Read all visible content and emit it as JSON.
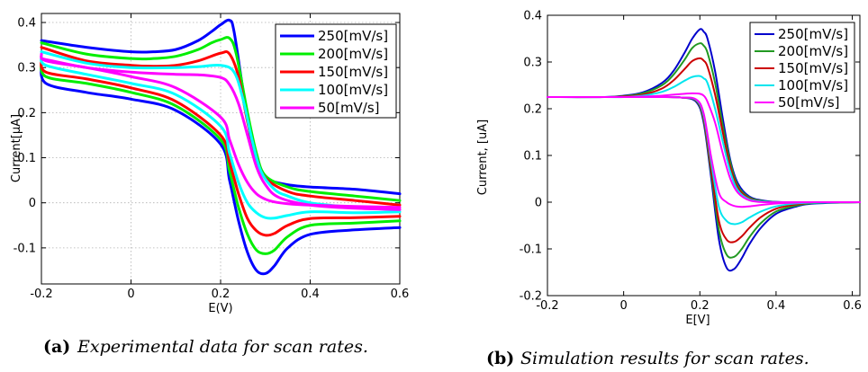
{
  "colors": {
    "s250": "#0000ff",
    "s200": "#00ee00",
    "s150": "#ff0000",
    "s100": "#00ffff",
    "s50": "#ff00ff",
    "sim250": "#0000cc",
    "sim200": "#229922",
    "sim150": "#cc0000",
    "sim100": "#00e5ee",
    "sim50": "#ff00ff"
  },
  "chart_data": [
    {
      "type": "line",
      "caption_label": "(a)",
      "caption_text": "Experimental data for scan rates.",
      "xlabel": "E(V)",
      "ylabel": "Current[μA]",
      "xlim": [
        -0.2,
        0.6
      ],
      "ylim": [
        -0.18,
        0.42
      ],
      "xticks": [
        "-0.2",
        "0",
        "0.2",
        "0.4",
        "0.6"
      ],
      "yticks": [
        "-0.1",
        "0",
        "0.1",
        "0.2",
        "0.3",
        "0.4"
      ],
      "grid": true,
      "legend_position": "top-right",
      "series": [
        {
          "name": "250[mV/s]",
          "color_key": "s250",
          "forward": {
            "x": [
              -0.2,
              -0.1,
              0.0,
              0.05,
              0.1,
              0.15,
              0.18,
              0.2,
              0.22,
              0.23,
              0.25,
              0.27,
              0.29,
              0.31,
              0.35,
              0.4,
              0.5,
              0.6
            ],
            "y": [
              0.36,
              0.345,
              0.335,
              0.335,
              0.34,
              0.36,
              0.38,
              0.395,
              0.405,
              0.38,
              0.25,
              0.13,
              0.07,
              0.05,
              0.04,
              0.035,
              0.03,
              0.02
            ]
          },
          "backward": {
            "x": [
              0.6,
              0.5,
              0.4,
              0.35,
              0.32,
              0.3,
              0.28,
              0.26,
              0.24,
              0.22,
              0.2,
              0.1,
              0.0,
              -0.1,
              -0.19,
              -0.2
            ],
            "y": [
              -0.055,
              -0.06,
              -0.07,
              -0.1,
              -0.14,
              -0.157,
              -0.15,
              -0.11,
              -0.04,
              0.05,
              0.13,
              0.205,
              0.23,
              0.245,
              0.265,
              0.31
            ]
          }
        },
        {
          "name": "200[mV/s]",
          "color_key": "s200",
          "forward": {
            "x": [
              -0.2,
              -0.1,
              0.0,
              0.05,
              0.1,
              0.15,
              0.18,
              0.2,
              0.22,
              0.235,
              0.26,
              0.28,
              0.3,
              0.35,
              0.4,
              0.5,
              0.6
            ],
            "y": [
              0.355,
              0.33,
              0.32,
              0.32,
              0.325,
              0.34,
              0.355,
              0.362,
              0.365,
              0.33,
              0.2,
              0.11,
              0.06,
              0.035,
              0.025,
              0.015,
              0.005
            ]
          },
          "backward": {
            "x": [
              0.6,
              0.5,
              0.4,
              0.35,
              0.32,
              0.3,
              0.28,
              0.26,
              0.24,
              0.22,
              0.2,
              0.1,
              0.0,
              -0.1,
              -0.19,
              -0.2
            ],
            "y": [
              -0.04,
              -0.045,
              -0.05,
              -0.075,
              -0.105,
              -0.113,
              -0.105,
              -0.07,
              -0.01,
              0.07,
              0.14,
              0.215,
              0.245,
              0.265,
              0.28,
              0.315
            ]
          }
        },
        {
          "name": "150[mV/s]",
          "color_key": "s150",
          "forward": {
            "x": [
              -0.2,
              -0.1,
              0.0,
              0.05,
              0.1,
              0.15,
              0.2,
              0.22,
              0.24,
              0.26,
              0.28,
              0.3,
              0.35,
              0.4,
              0.5,
              0.6
            ],
            "y": [
              0.345,
              0.315,
              0.305,
              0.303,
              0.305,
              0.315,
              0.332,
              0.33,
              0.28,
              0.18,
              0.1,
              0.055,
              0.025,
              0.015,
              0.005,
              -0.005
            ]
          },
          "backward": {
            "x": [
              0.6,
              0.5,
              0.4,
              0.35,
              0.32,
              0.3,
              0.28,
              0.26,
              0.24,
              0.22,
              0.2,
              0.1,
              0.0,
              -0.1,
              -0.19,
              -0.2
            ],
            "y": [
              -0.03,
              -0.033,
              -0.035,
              -0.05,
              -0.068,
              -0.072,
              -0.062,
              -0.035,
              0.02,
              0.09,
              0.15,
              0.225,
              0.255,
              0.275,
              0.29,
              0.32
            ]
          }
        },
        {
          "name": "100[mV/s]",
          "color_key": "s100",
          "forward": {
            "x": [
              -0.2,
              -0.1,
              0.0,
              0.1,
              0.15,
              0.2,
              0.23,
              0.25,
              0.27,
              0.29,
              0.32,
              0.35,
              0.4,
              0.5,
              0.6
            ],
            "y": [
              0.335,
              0.31,
              0.3,
              0.3,
              0.302,
              0.305,
              0.29,
              0.23,
              0.14,
              0.07,
              0.03,
              0.015,
              0.0,
              -0.01,
              -0.015
            ]
          },
          "backward": {
            "x": [
              0.6,
              0.5,
              0.4,
              0.35,
              0.32,
              0.3,
              0.28,
              0.26,
              0.24,
              0.22,
              0.2,
              0.1,
              0.0,
              -0.1,
              -0.19,
              -0.2
            ],
            "y": [
              -0.02,
              -0.022,
              -0.02,
              -0.028,
              -0.034,
              -0.033,
              -0.022,
              0.0,
              0.045,
              0.11,
              0.17,
              0.24,
              0.265,
              0.285,
              0.305,
              0.325
            ]
          }
        },
        {
          "name": "50[mV/s]",
          "color_key": "s50",
          "forward": {
            "x": [
              -0.2,
              -0.1,
              0.0,
              0.1,
              0.15,
              0.2,
              0.22,
              0.24,
              0.26,
              0.28,
              0.3,
              0.33,
              0.4,
              0.5,
              0.6
            ],
            "y": [
              0.32,
              0.3,
              0.29,
              0.285,
              0.284,
              0.278,
              0.262,
              0.22,
              0.15,
              0.08,
              0.04,
              0.012,
              -0.005,
              -0.012,
              -0.015
            ]
          },
          "backward": {
            "x": [
              0.6,
              0.5,
              0.4,
              0.35,
              0.32,
              0.3,
              0.28,
              0.26,
              0.24,
              0.22,
              0.2,
              0.1,
              0.0,
              -0.1,
              -0.19,
              -0.2
            ],
            "y": [
              -0.01,
              -0.008,
              -0.005,
              -0.002,
              0.002,
              0.008,
              0.02,
              0.045,
              0.085,
              0.14,
              0.19,
              0.255,
              0.28,
              0.3,
              0.315,
              0.33
            ]
          }
        }
      ]
    },
    {
      "type": "line",
      "caption_label": "(b)",
      "caption_text": "Simulation results for scan rates.",
      "xlabel": "E[V]",
      "ylabel": "Current, [uA]",
      "xlim": [
        -0.2,
        0.62
      ],
      "ylim": [
        -0.2,
        0.4
      ],
      "xticks": [
        "-0.2",
        "0",
        "0.2",
        "0.4",
        "0.6"
      ],
      "yticks": [
        "-0.2",
        "-0.1",
        "0",
        "0.1",
        "0.2",
        "0.3",
        "0.4"
      ],
      "grid": false,
      "legend_position": "top-right",
      "series": [
        {
          "name": "250[mV/s]",
          "color_key": "sim250",
          "forward": {
            "x": [
              -0.2,
              -0.05,
              0.0,
              0.05,
              0.1,
              0.13,
              0.16,
              0.18,
              0.2,
              0.21,
              0.22,
              0.24,
              0.26,
              0.28,
              0.3,
              0.33,
              0.37,
              0.42,
              0.5,
              0.62
            ],
            "y": [
              0.225,
              0.225,
              0.228,
              0.235,
              0.255,
              0.28,
              0.32,
              0.35,
              0.37,
              0.365,
              0.35,
              0.28,
              0.18,
              0.09,
              0.04,
              0.012,
              0.003,
              0.0,
              0.0,
              0.0
            ]
          },
          "backward": {
            "x": [
              0.62,
              0.5,
              0.45,
              0.4,
              0.36,
              0.33,
              0.31,
              0.29,
              0.27,
              0.25,
              0.23,
              0.21,
              0.19,
              0.15,
              0.1,
              0.0,
              -0.2
            ],
            "y": [
              0.0,
              -0.003,
              -0.01,
              -0.025,
              -0.055,
              -0.09,
              -0.12,
              -0.143,
              -0.14,
              -0.08,
              0.05,
              0.17,
              0.215,
              0.224,
              0.225,
              0.225,
              0.225
            ]
          }
        },
        {
          "name": "200[mV/s]",
          "color_key": "sim200",
          "forward": {
            "x": [
              -0.2,
              -0.05,
              0.0,
              0.05,
              0.1,
              0.13,
              0.16,
              0.18,
              0.2,
              0.21,
              0.22,
              0.24,
              0.26,
              0.28,
              0.3,
              0.33,
              0.37,
              0.42,
              0.5,
              0.62
            ],
            "y": [
              0.225,
              0.225,
              0.227,
              0.233,
              0.25,
              0.272,
              0.305,
              0.33,
              0.34,
              0.335,
              0.32,
              0.255,
              0.165,
              0.085,
              0.035,
              0.01,
              0.002,
              0.0,
              0.0,
              0.0
            ]
          },
          "backward": {
            "x": [
              0.62,
              0.5,
              0.45,
              0.4,
              0.36,
              0.33,
              0.31,
              0.29,
              0.27,
              0.25,
              0.23,
              0.21,
              0.19,
              0.15,
              0.1,
              0.0,
              -0.2
            ],
            "y": [
              0.0,
              -0.002,
              -0.008,
              -0.02,
              -0.045,
              -0.075,
              -0.1,
              -0.117,
              -0.112,
              -0.06,
              0.06,
              0.175,
              0.217,
              0.224,
              0.225,
              0.225,
              0.225
            ]
          }
        },
        {
          "name": "150[mV/s]",
          "color_key": "sim150",
          "forward": {
            "x": [
              -0.2,
              -0.05,
              0.0,
              0.05,
              0.1,
              0.13,
              0.16,
              0.18,
              0.2,
              0.21,
              0.22,
              0.24,
              0.26,
              0.28,
              0.3,
              0.33,
              0.37,
              0.42,
              0.5,
              0.62
            ],
            "y": [
              0.225,
              0.225,
              0.226,
              0.23,
              0.243,
              0.26,
              0.285,
              0.302,
              0.308,
              0.303,
              0.29,
              0.23,
              0.15,
              0.075,
              0.03,
              0.008,
              0.001,
              0.0,
              0.0,
              0.0
            ]
          },
          "backward": {
            "x": [
              0.62,
              0.5,
              0.45,
              0.4,
              0.36,
              0.33,
              0.31,
              0.29,
              0.27,
              0.25,
              0.23,
              0.21,
              0.19,
              0.15,
              0.1,
              0.0,
              -0.2
            ],
            "y": [
              0.0,
              -0.001,
              -0.005,
              -0.014,
              -0.032,
              -0.055,
              -0.073,
              -0.085,
              -0.08,
              -0.04,
              0.07,
              0.18,
              0.218,
              0.224,
              0.225,
              0.225,
              0.225
            ]
          }
        },
        {
          "name": "100[mV/s]",
          "color_key": "sim100",
          "forward": {
            "x": [
              -0.2,
              -0.05,
              0.0,
              0.05,
              0.1,
              0.13,
              0.16,
              0.18,
              0.2,
              0.21,
              0.22,
              0.24,
              0.26,
              0.28,
              0.3,
              0.33,
              0.37,
              0.42,
              0.5,
              0.62
            ],
            "y": [
              0.225,
              0.225,
              0.225,
              0.228,
              0.236,
              0.246,
              0.26,
              0.268,
              0.27,
              0.265,
              0.255,
              0.2,
              0.13,
              0.065,
              0.025,
              0.006,
              0.001,
              0.0,
              0.0,
              0.0
            ]
          },
          "backward": {
            "x": [
              0.62,
              0.5,
              0.45,
              0.4,
              0.36,
              0.33,
              0.31,
              0.29,
              0.27,
              0.25,
              0.23,
              0.21,
              0.19,
              0.15,
              0.1,
              0.0,
              -0.2
            ],
            "y": [
              0.0,
              -0.001,
              -0.003,
              -0.009,
              -0.02,
              -0.033,
              -0.043,
              -0.047,
              -0.04,
              -0.01,
              0.085,
              0.185,
              0.219,
              0.224,
              0.225,
              0.225,
              0.225
            ]
          }
        },
        {
          "name": "50[mV/s]",
          "color_key": "sim50",
          "forward": {
            "x": [
              -0.2,
              -0.05,
              0.0,
              0.05,
              0.1,
              0.13,
              0.16,
              0.18,
              0.2,
              0.21,
              0.22,
              0.24,
              0.26,
              0.28,
              0.3,
              0.33,
              0.37,
              0.42,
              0.5,
              0.62
            ],
            "y": [
              0.225,
              0.225,
              0.225,
              0.226,
              0.228,
              0.23,
              0.232,
              0.233,
              0.232,
              0.228,
              0.215,
              0.17,
              0.105,
              0.05,
              0.02,
              0.004,
              0.0,
              0.0,
              0.0,
              0.0
            ]
          },
          "backward": {
            "x": [
              0.62,
              0.5,
              0.45,
              0.4,
              0.36,
              0.33,
              0.31,
              0.29,
              0.27,
              0.25,
              0.23,
              0.21,
              0.19,
              0.15,
              0.1,
              0.0,
              -0.2
            ],
            "y": [
              0.0,
              0.0,
              -0.001,
              -0.003,
              -0.006,
              -0.009,
              -0.01,
              -0.008,
              0.0,
              0.02,
              0.095,
              0.19,
              0.22,
              0.224,
              0.225,
              0.225,
              0.225
            ]
          }
        }
      ]
    }
  ]
}
